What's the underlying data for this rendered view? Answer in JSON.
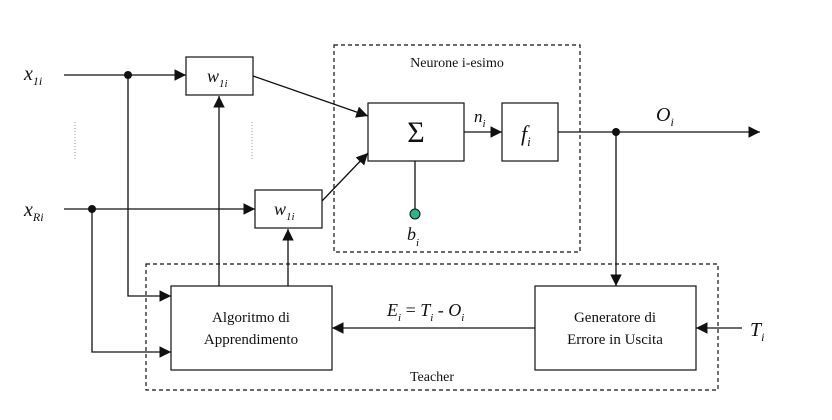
{
  "inputs": {
    "x1_base": "x",
    "x1_sub": "1i",
    "xR_base": "x",
    "xR_sub": "Ri"
  },
  "weights": {
    "w_top_base": "w",
    "w_top_sub": "1i",
    "w_bottom_base": "w",
    "w_bottom_sub": "1i"
  },
  "neuron": {
    "label": "Neurone i-esimo",
    "sum_symbol": "Σ",
    "n_base": "n",
    "n_sub": "i",
    "f_base": "f",
    "f_sub": "i",
    "b_base": "b",
    "b_sub": "i"
  },
  "output": {
    "o_base": "O",
    "o_sub": "i"
  },
  "teacher": {
    "label": "Teacher",
    "algo_line1": "Algoritmo di",
    "algo_line2": "Apprendimento",
    "gen_line1": "Generatore di",
    "gen_line2": "Errore in Uscita",
    "error_E": "E",
    "error_E_sub": "i",
    "error_eq": " = ",
    "error_T": "T",
    "error_T_sub": "i",
    "error_minus": " - ",
    "error_O": "O",
    "error_O_sub": "i",
    "t_base": "T",
    "t_sub": "i"
  },
  "colors": {
    "bias_node": "#2bb58a"
  }
}
